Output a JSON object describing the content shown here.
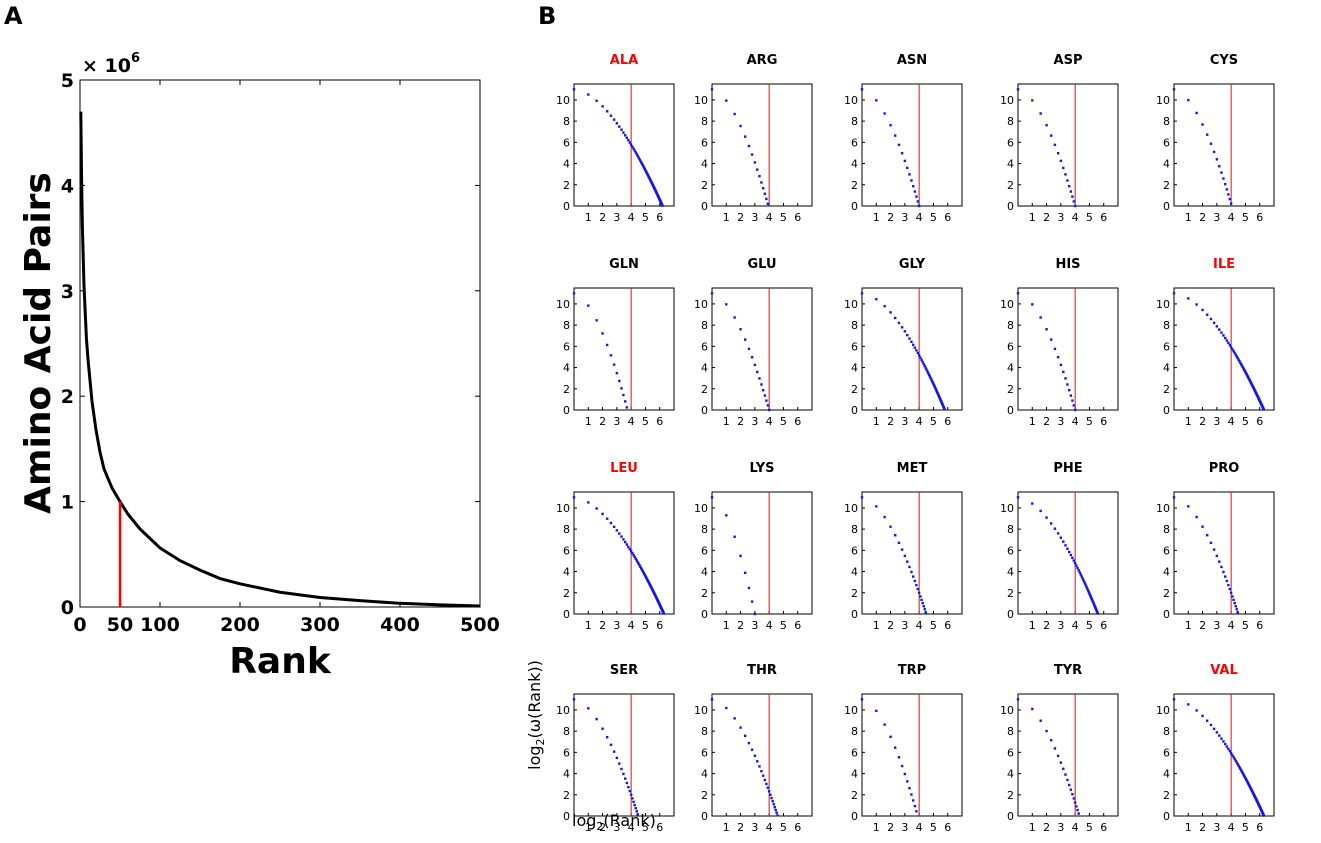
{
  "panel_a": {
    "letter": "A"
  },
  "panel_b": {
    "letter": "B",
    "xlabel_main": "log",
    "xlabel_sub": "2",
    "xlabel_rest": "(Rank)",
    "ylabel_main": "log",
    "ylabel_sub": "2",
    "ylabel_rest": "(ω(Rank))"
  },
  "colors": {
    "curve": "#000000",
    "marker": "#ff0000",
    "points": "#1515e6",
    "highlight_title": "#ff0000",
    "normal_title": "#000000"
  },
  "chart_data": [
    {
      "type": "line",
      "xlabel": "Rank",
      "ylabel": "Amino Acid Pairs",
      "y_multiplier_label": "× 10",
      "y_multiplier_exp": "6",
      "xlim": [
        0,
        500
      ],
      "ylim": [
        0,
        5
      ],
      "xticks": [
        0,
        100,
        200,
        300,
        400,
        500
      ],
      "yticks": [
        0,
        1,
        2,
        3,
        4,
        5
      ],
      "marker": {
        "x": 50,
        "y": 1.0,
        "label": "50"
      },
      "series": [
        {
          "x": [
            1,
            2,
            3,
            5,
            8,
            10,
            15,
            20,
            25,
            30,
            40,
            50,
            60,
            75,
            100,
            125,
            150,
            175,
            200,
            250,
            300,
            350,
            400,
            450,
            500
          ],
          "values": [
            4.7,
            4.05,
            3.6,
            3.05,
            2.55,
            2.35,
            1.95,
            1.68,
            1.47,
            1.31,
            1.13,
            1.0,
            0.88,
            0.74,
            0.56,
            0.44,
            0.35,
            0.27,
            0.22,
            0.14,
            0.09,
            0.06,
            0.035,
            0.02,
            0.01
          ]
        }
      ]
    },
    {
      "type": "scatter",
      "subtype": "small-multiples",
      "xlim": [
        0,
        7
      ],
      "ylim": [
        0,
        11.5
      ],
      "xticks": [
        1,
        2,
        3,
        4,
        5,
        6
      ],
      "yticks": [
        0,
        2,
        4,
        6,
        8,
        10
      ],
      "cutoff_x": 4,
      "panels": [
        {
          "name": "ALA",
          "highlight": true,
          "end": 6.2
        },
        {
          "name": "ARG",
          "highlight": false,
          "end": 3.95
        },
        {
          "name": "ASN",
          "highlight": false,
          "end": 4.0
        },
        {
          "name": "ASP",
          "highlight": false,
          "end": 4.0
        },
        {
          "name": "CYS",
          "highlight": false,
          "end": 4.05
        },
        {
          "name": "GLN",
          "highlight": false,
          "end": 3.75
        },
        {
          "name": "GLU",
          "highlight": false,
          "end": 4.0
        },
        {
          "name": "GLY",
          "highlight": false,
          "end": 5.8
        },
        {
          "name": "HIS",
          "highlight": false,
          "end": 4.0
        },
        {
          "name": "ILE",
          "highlight": true,
          "end": 6.3
        },
        {
          "name": "LEU",
          "highlight": true,
          "end": 6.3
        },
        {
          "name": "LYS",
          "highlight": false,
          "end": 3.0
        },
        {
          "name": "MET",
          "highlight": false,
          "end": 4.5
        },
        {
          "name": "PHE",
          "highlight": false,
          "end": 5.6
        },
        {
          "name": "PRO",
          "highlight": false,
          "end": 4.5
        },
        {
          "name": "SER",
          "highlight": false,
          "end": 4.5
        },
        {
          "name": "THR",
          "highlight": false,
          "end": 4.6
        },
        {
          "name": "TRP",
          "highlight": false,
          "end": 3.9
        },
        {
          "name": "TYR",
          "highlight": false,
          "end": 4.3
        },
        {
          "name": "VAL",
          "highlight": true,
          "end": 6.3
        }
      ]
    }
  ]
}
